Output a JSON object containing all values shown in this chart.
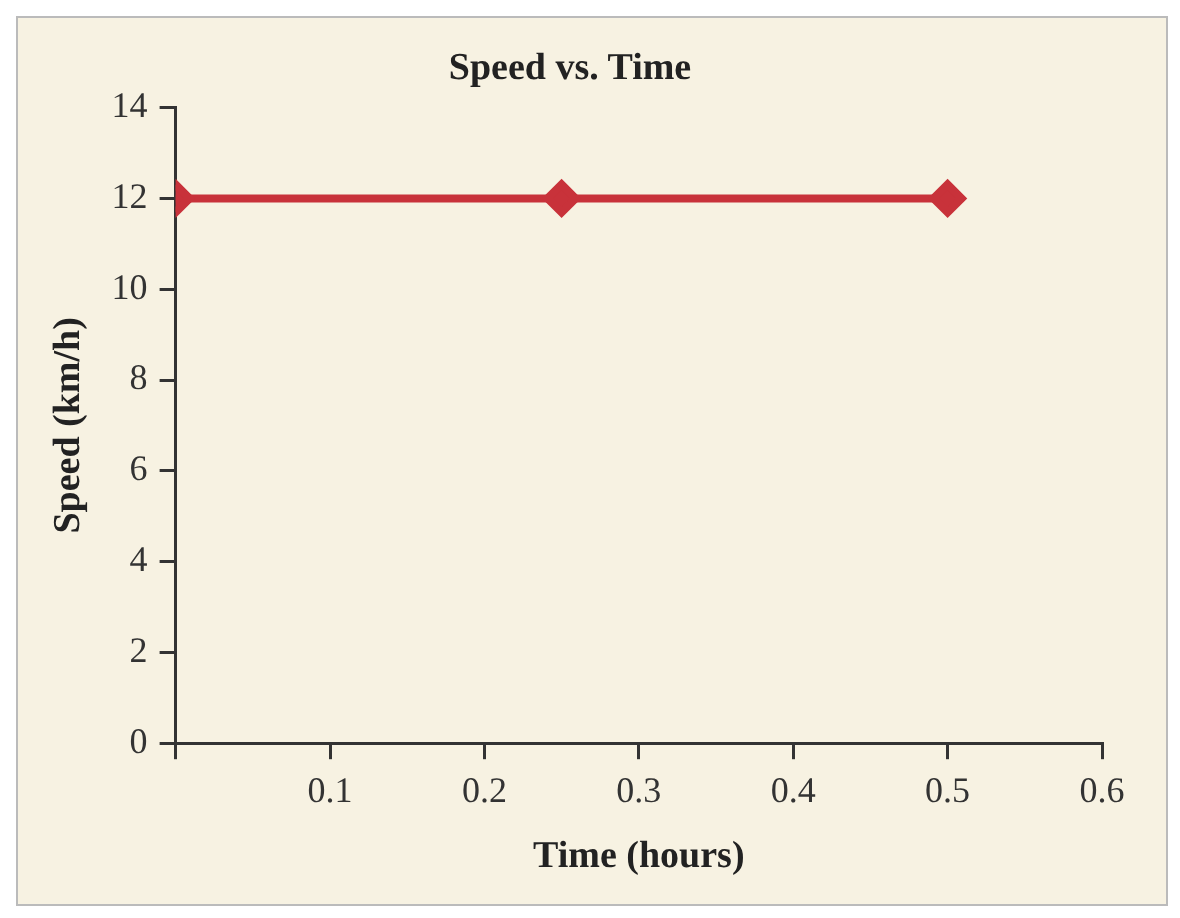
{
  "chart_data": {
    "type": "line",
    "title": "Speed vs. Time",
    "xlabel": "Time (hours)",
    "ylabel": "Speed (km/h)",
    "x": [
      0,
      0.25,
      0.5
    ],
    "series": [
      {
        "color": "#c8323a",
        "values": [
          12,
          12,
          12
        ]
      }
    ],
    "xlim": [
      0,
      0.6
    ],
    "xticks": [
      {
        "value": 0,
        "label": null
      },
      0.1,
      0.2,
      0.3,
      0.4,
      0.5,
      0.6
    ],
    "ylim": [
      0,
      14
    ],
    "yticks": [
      0,
      2,
      4,
      6,
      8,
      10,
      12,
      14
    ],
    "grid": false,
    "legend": false,
    "marker": "diamond",
    "line_style": "solid"
  }
}
